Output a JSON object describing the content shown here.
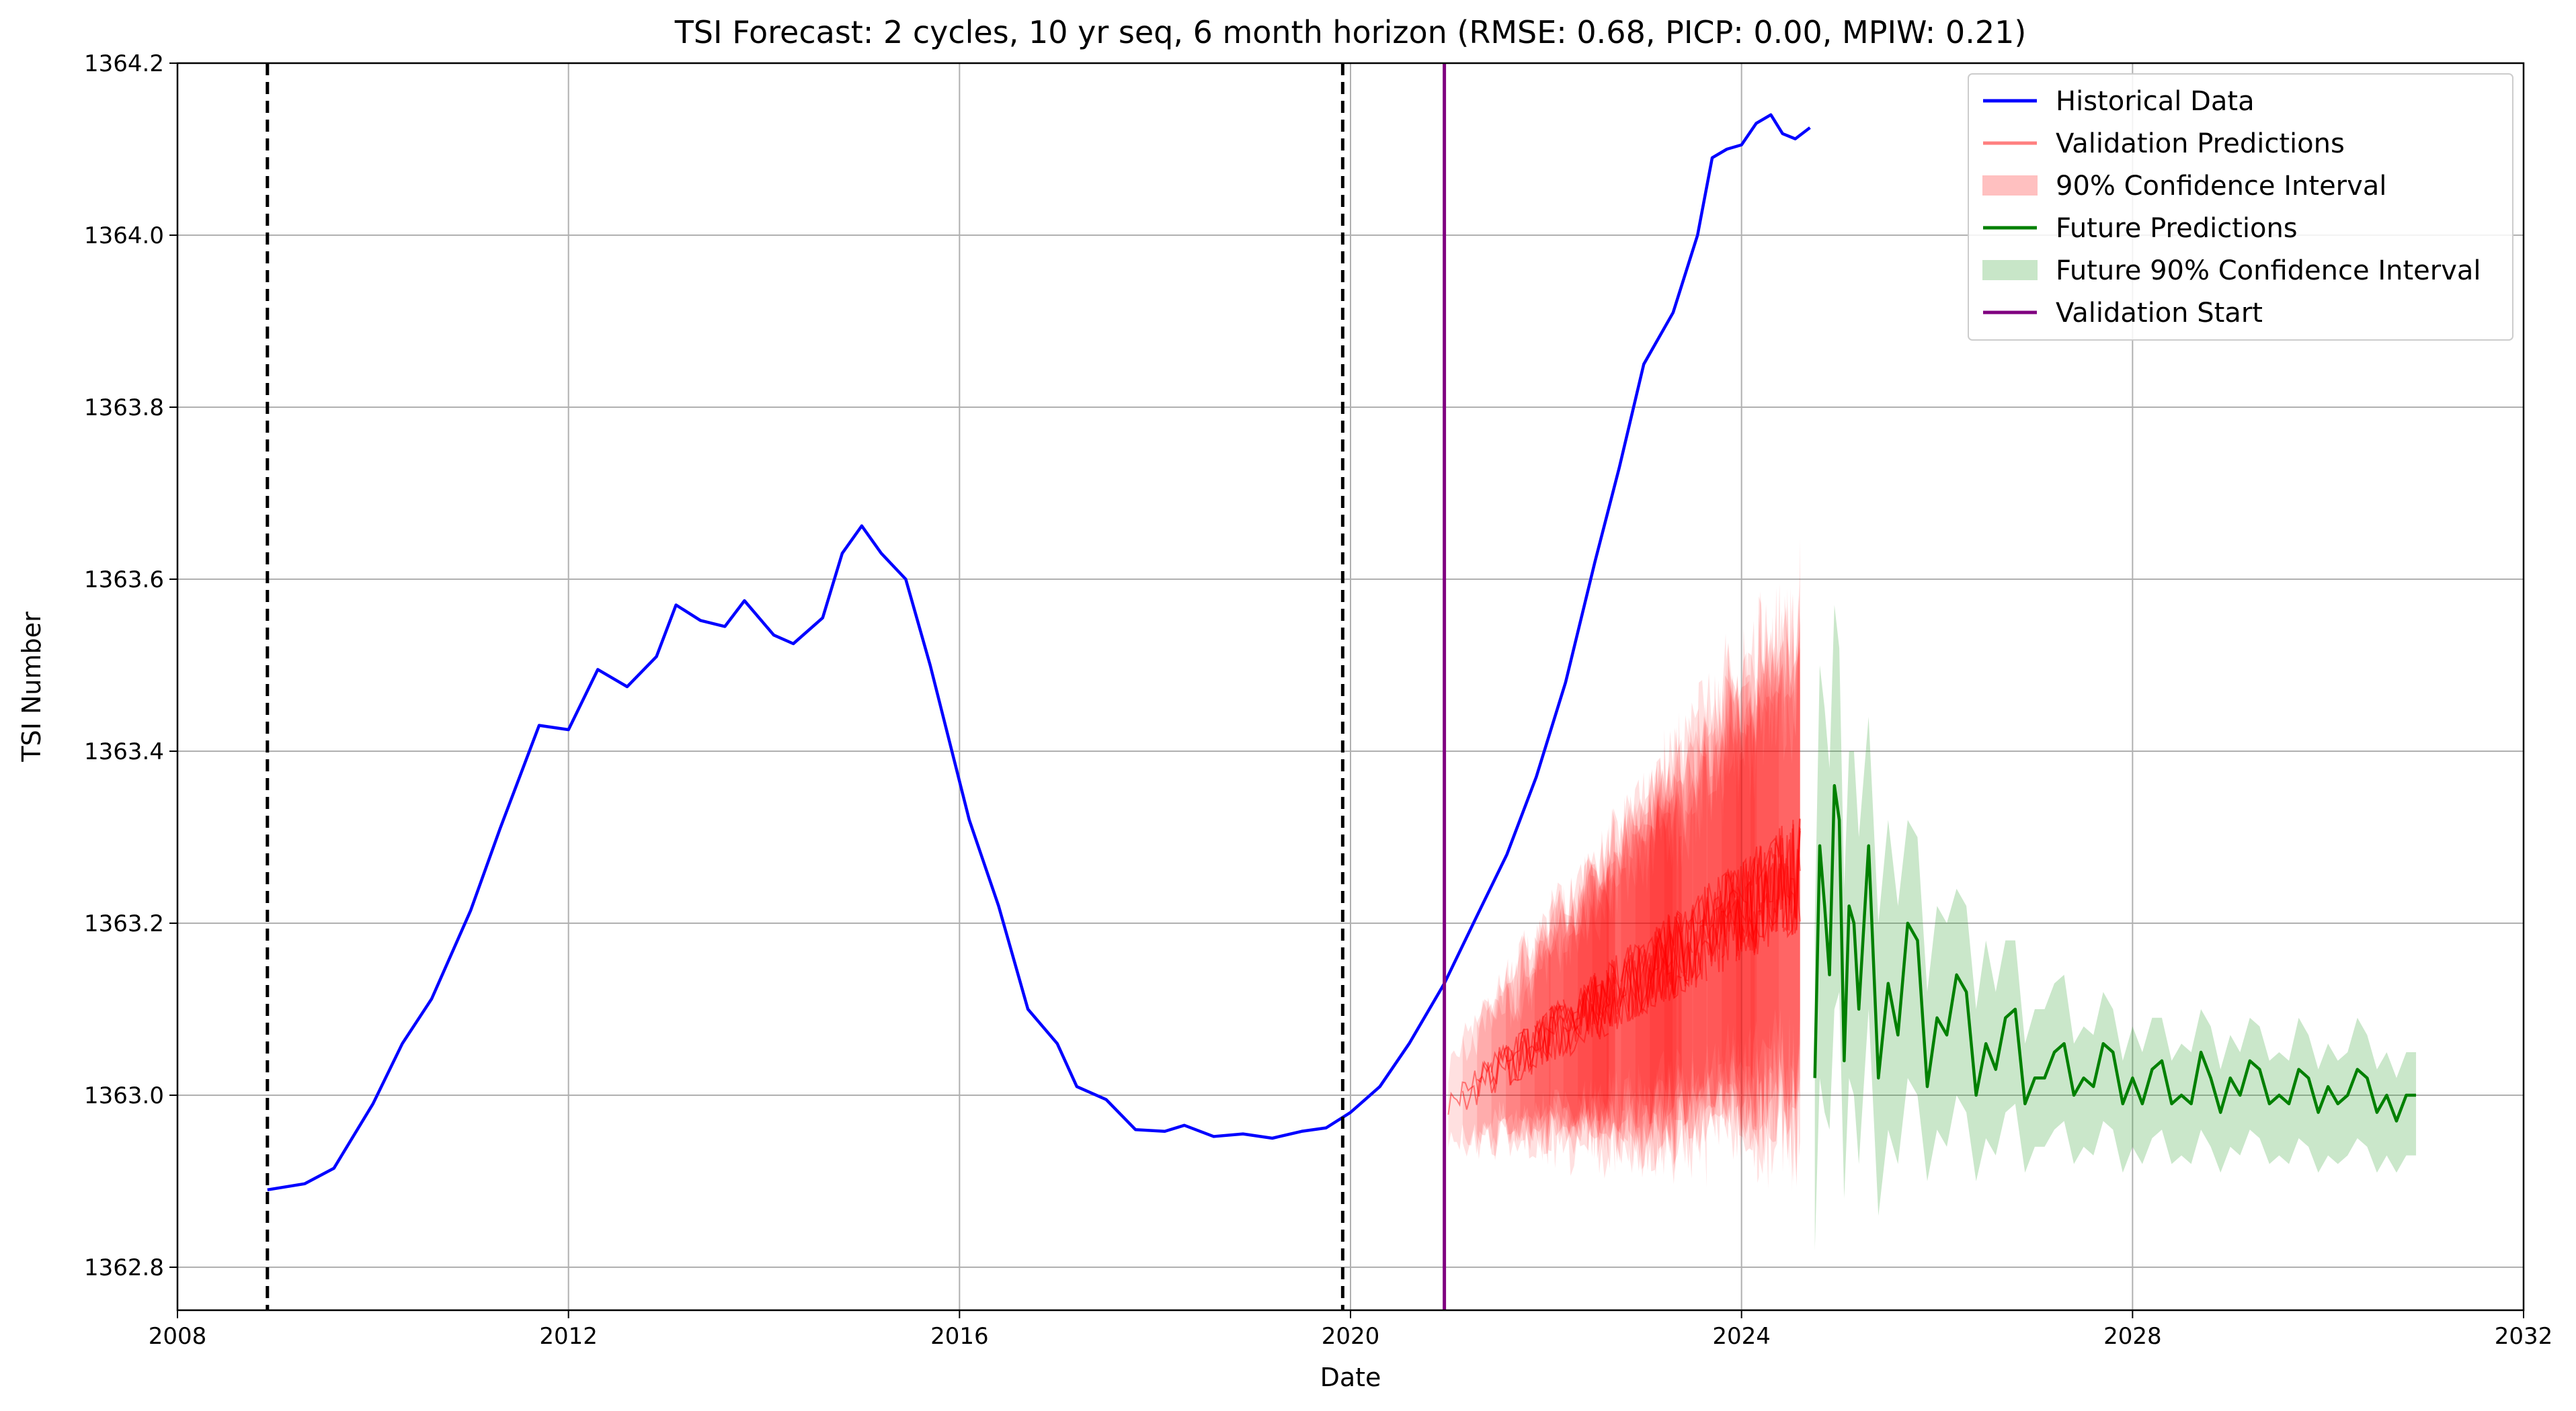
{
  "chart_data": {
    "type": "line",
    "title": "TSI Forecast: 2 cycles, 10 yr seq, 6 month horizon (RMSE: 0.68, PICP: 0.00, MPIW: 0.21)",
    "xlabel": "Date",
    "ylabel": "TSI Number",
    "xlim": [
      "2008",
      "2032"
    ],
    "ylim": [
      1362.75,
      1364.2
    ],
    "x_ticks": [
      "2008",
      "2012",
      "2016",
      "2020",
      "2024",
      "2028",
      "2032"
    ],
    "y_ticks": [
      "1362.8",
      "1363.0",
      "1363.2",
      "1363.4",
      "1363.6",
      "1363.8",
      "1364.0",
      "1364.2"
    ],
    "grid": true,
    "legend_position": "top-right",
    "legend": [
      {
        "label": "Historical Data",
        "kind": "line",
        "color": "#0000ff"
      },
      {
        "label": "Validation Predictions",
        "kind": "line",
        "color": "#ff7f7f"
      },
      {
        "label": "90% Confidence Interval",
        "kind": "patch",
        "color": "#ffc0c0"
      },
      {
        "label": "Future Predictions",
        "kind": "line",
        "color": "#008000"
      },
      {
        "label": "Future 90% Confidence Interval",
        "kind": "patch",
        "color": "#c8e6c8"
      },
      {
        "label": "Validation Start",
        "kind": "line",
        "color": "#800080"
      }
    ],
    "vertical_lines": [
      {
        "x": 2008.92,
        "style": "dashed",
        "color": "#000000"
      },
      {
        "x": 2019.92,
        "style": "dashed",
        "color": "#000000"
      },
      {
        "x": 2020.96,
        "style": "solid",
        "color": "#800080"
      }
    ],
    "historical": {
      "name": "Historical Data",
      "color": "#0000ff",
      "points": [
        [
          2008.92,
          1362.89
        ],
        [
          2009.3,
          1362.897
        ],
        [
          2009.6,
          1362.915
        ],
        [
          2010.0,
          1362.99
        ],
        [
          2010.3,
          1363.06
        ],
        [
          2010.6,
          1363.112
        ],
        [
          2011.0,
          1363.215
        ],
        [
          2011.3,
          1363.31
        ],
        [
          2011.7,
          1363.43
        ],
        [
          2012.0,
          1363.425
        ],
        [
          2012.3,
          1363.495
        ],
        [
          2012.6,
          1363.475
        ],
        [
          2012.9,
          1363.51
        ],
        [
          2013.1,
          1363.57
        ],
        [
          2013.35,
          1363.552
        ],
        [
          2013.6,
          1363.545
        ],
        [
          2013.8,
          1363.575
        ],
        [
          2014.1,
          1363.535
        ],
        [
          2014.3,
          1363.525
        ],
        [
          2014.6,
          1363.555
        ],
        [
          2014.8,
          1363.63
        ],
        [
          2015.0,
          1363.662
        ],
        [
          2015.2,
          1363.63
        ],
        [
          2015.45,
          1363.6
        ],
        [
          2015.7,
          1363.5
        ],
        [
          2015.9,
          1363.41
        ],
        [
          2016.1,
          1363.32
        ],
        [
          2016.4,
          1363.22
        ],
        [
          2016.7,
          1363.1
        ],
        [
          2017.0,
          1363.06
        ],
        [
          2017.2,
          1363.01
        ],
        [
          2017.5,
          1362.995
        ],
        [
          2017.8,
          1362.96
        ],
        [
          2018.1,
          1362.958
        ],
        [
          2018.3,
          1362.965
        ],
        [
          2018.6,
          1362.952
        ],
        [
          2018.9,
          1362.955
        ],
        [
          2019.2,
          1362.95
        ],
        [
          2019.5,
          1362.958
        ],
        [
          2019.75,
          1362.962
        ],
        [
          2020.0,
          1362.98
        ],
        [
          2020.3,
          1363.01
        ],
        [
          2020.6,
          1363.06
        ],
        [
          2020.96,
          1363.13
        ],
        [
          2021.3,
          1363.21
        ],
        [
          2021.6,
          1363.28
        ],
        [
          2021.9,
          1363.37
        ],
        [
          2022.2,
          1363.48
        ],
        [
          2022.5,
          1363.62
        ],
        [
          2022.75,
          1363.73
        ],
        [
          2023.0,
          1363.85
        ],
        [
          2023.3,
          1363.91
        ],
        [
          2023.55,
          1364.0
        ],
        [
          2023.7,
          1364.09
        ],
        [
          2023.85,
          1364.1
        ],
        [
          2024.0,
          1364.105
        ],
        [
          2024.15,
          1364.13
        ],
        [
          2024.3,
          1364.14
        ],
        [
          2024.42,
          1364.118
        ],
        [
          2024.55,
          1364.112
        ],
        [
          2024.7,
          1364.125
        ]
      ]
    },
    "validation_predictions": {
      "name": "Validation Predictions",
      "color": "#ff0000",
      "x_start": 2021.0,
      "x_end": 2024.6,
      "center_start": 1362.99,
      "center_end": 1363.26,
      "band_half_width_start": 0.04,
      "band_half_width_end": 0.24
    },
    "future_predictions": {
      "name": "Future Predictions",
      "color": "#008000",
      "x": [
        2024.75,
        2024.8,
        2024.85,
        2024.9,
        2024.95,
        2025.0,
        2025.05,
        2025.1,
        2025.15,
        2025.2,
        2025.3,
        2025.4,
        2025.5,
        2025.6,
        2025.7,
        2025.8,
        2025.9,
        2026.0,
        2026.1,
        2026.2,
        2026.3,
        2026.4,
        2026.5,
        2026.6,
        2026.7,
        2026.8,
        2026.9,
        2027.0,
        2027.1,
        2027.2,
        2027.3,
        2027.4,
        2027.5,
        2027.6,
        2027.7,
        2027.8,
        2027.9,
        2028.0,
        2028.1,
        2028.2,
        2028.3,
        2028.4,
        2028.5,
        2028.6,
        2028.7,
        2028.8,
        2028.9,
        2029.0,
        2029.1,
        2029.2,
        2029.3,
        2029.4,
        2029.5,
        2029.6,
        2029.7,
        2029.8,
        2029.9,
        2030.0,
        2030.1,
        2030.2,
        2030.3,
        2030.4,
        2030.5,
        2030.6,
        2030.7,
        2030.8,
        2030.9
      ],
      "values": [
        1363.02,
        1363.29,
        1363.22,
        1363.14,
        1363.36,
        1363.32,
        1363.04,
        1363.22,
        1363.2,
        1363.1,
        1363.29,
        1363.02,
        1363.13,
        1363.07,
        1363.2,
        1363.18,
        1363.01,
        1363.09,
        1363.07,
        1363.14,
        1363.12,
        1363.0,
        1363.06,
        1363.03,
        1363.09,
        1363.1,
        1362.99,
        1363.02,
        1363.02,
        1363.05,
        1363.06,
        1363.0,
        1363.02,
        1363.01,
        1363.06,
        1363.05,
        1362.99,
        1363.02,
        1362.99,
        1363.03,
        1363.04,
        1362.99,
        1363.0,
        1362.99,
        1363.05,
        1363.02,
        1362.98,
        1363.02,
        1363.0,
        1363.04,
        1363.03,
        1362.99,
        1363.0,
        1362.99,
        1363.03,
        1363.02,
        1362.98,
        1363.01,
        1362.99,
        1363.0,
        1363.03,
        1363.02,
        1362.98,
        1363.0,
        1362.97,
        1363.0,
        1363.0
      ],
      "band_lower": [
        1362.82,
        1363.02,
        1362.98,
        1362.96,
        1363.1,
        1363.12,
        1362.88,
        1363.02,
        1363.0,
        1362.92,
        1363.1,
        1362.86,
        1362.96,
        1362.92,
        1363.02,
        1363.0,
        1362.9,
        1362.96,
        1362.94,
        1363.0,
        1362.98,
        1362.9,
        1362.95,
        1362.93,
        1362.98,
        1362.99,
        1362.91,
        1362.94,
        1362.94,
        1362.96,
        1362.97,
        1362.92,
        1362.94,
        1362.93,
        1362.97,
        1362.96,
        1362.91,
        1362.94,
        1362.92,
        1362.95,
        1362.96,
        1362.92,
        1362.93,
        1362.92,
        1362.96,
        1362.94,
        1362.91,
        1362.94,
        1362.93,
        1362.96,
        1362.95,
        1362.92,
        1362.93,
        1362.92,
        1362.95,
        1362.94,
        1362.91,
        1362.93,
        1362.92,
        1362.93,
        1362.95,
        1362.94,
        1362.91,
        1362.93,
        1362.91,
        1362.93,
        1362.93
      ],
      "band_upper": [
        1363.2,
        1363.5,
        1363.45,
        1363.38,
        1363.57,
        1363.52,
        1363.24,
        1363.4,
        1363.4,
        1363.3,
        1363.44,
        1363.2,
        1363.32,
        1363.22,
        1363.32,
        1363.3,
        1363.12,
        1363.22,
        1363.2,
        1363.24,
        1363.22,
        1363.1,
        1363.18,
        1363.12,
        1363.18,
        1363.18,
        1363.06,
        1363.1,
        1363.1,
        1363.13,
        1363.14,
        1363.06,
        1363.08,
        1363.07,
        1363.12,
        1363.1,
        1363.04,
        1363.08,
        1363.05,
        1363.09,
        1363.09,
        1363.04,
        1363.06,
        1363.05,
        1363.1,
        1363.08,
        1363.03,
        1363.07,
        1363.05,
        1363.09,
        1363.08,
        1363.04,
        1363.05,
        1363.04,
        1363.09,
        1363.07,
        1363.03,
        1363.06,
        1363.04,
        1363.05,
        1363.09,
        1363.07,
        1363.03,
        1363.05,
        1363.02,
        1363.05,
        1363.05
      ]
    }
  }
}
